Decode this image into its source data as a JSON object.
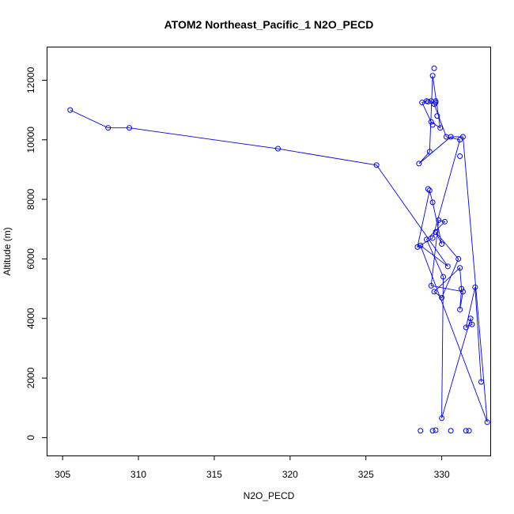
{
  "chart_data": {
    "type": "line",
    "title": "ATOM2 Northeast_Pacific_1 N2O_PECD",
    "xlabel": "N2O_PECD",
    "ylabel": "Altitude (m)",
    "xlim": [
      304.0,
      333.2
    ],
    "ylim": [
      -600,
      13100
    ],
    "xticks": [
      305,
      310,
      315,
      320,
      325,
      330
    ],
    "yticks": [
      0,
      2000,
      4000,
      6000,
      8000,
      10000,
      12000
    ],
    "marker": "open-circle",
    "line_color": "#0000ff",
    "point_color": "#0000ff",
    "series": [
      {
        "x": [
          305.5,
          308.0,
          309.4,
          319.2,
          325.7,
          330.4,
          328.6,
          333.0,
          331.4,
          330.6,
          328.5,
          329.2,
          329.4,
          329.9,
          329.3,
          328.7,
          329.0,
          329.3,
          329.5,
          330.3,
          331.2,
          329.4,
          328.4,
          329.2,
          329.4,
          330.0,
          329.6,
          331.1,
          330.0,
          329.5,
          331.2,
          331.3,
          331.2,
          331.4,
          329.3,
          329.8,
          330.2,
          329.0,
          330.1,
          330.0,
          331.9,
          332.0,
          331.6,
          332.2,
          332.6
        ],
        "y": [
          11000,
          10400,
          10400,
          9700,
          9150,
          5750,
          6450,
          520,
          10100,
          10100,
          9200,
          9600,
          12150,
          10400,
          10600,
          11250,
          11300,
          11300,
          11200,
          10100,
          10000,
          6700,
          6400,
          8300,
          7900,
          6500,
          6900,
          6000,
          4700,
          4900,
          5700,
          5000,
          4300,
          4900,
          5100,
          7300,
          7250,
          6650,
          5400,
          650,
          4000,
          3800,
          3700,
          5050,
          1870
        ]
      }
    ],
    "extra_points": {
      "x": [
        328.6,
        329.4,
        329.6,
        330.6,
        331.6,
        331.8,
        331.2,
        329.1,
        329.4,
        329.6,
        329.1,
        329.7,
        329.5,
        329.6
      ],
      "y": [
        230,
        230,
        250,
        230,
        230,
        230,
        9450,
        11280,
        10500,
        11250,
        8350,
        10800,
        12400,
        11300
      ]
    }
  }
}
